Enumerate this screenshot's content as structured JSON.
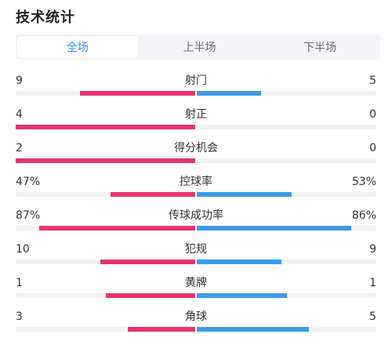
{
  "title": "技术统计",
  "tabs": [
    {
      "label": "全场",
      "active": true
    },
    {
      "label": "上半场",
      "active": false
    },
    {
      "label": "下半场",
      "active": false
    }
  ],
  "colors": {
    "home": "#e8336d",
    "away": "#3b9be8"
  },
  "stats": [
    {
      "name": "射门",
      "home": "9",
      "away": "5",
      "home_share": 0.64,
      "away_share": 0.36
    },
    {
      "name": "射正",
      "home": "4",
      "away": "0",
      "home_share": 1.0,
      "away_share": 0.0
    },
    {
      "name": "得分机会",
      "home": "2",
      "away": "0",
      "home_share": 1.0,
      "away_share": 0.0
    },
    {
      "name": "控球率",
      "home": "47%",
      "away": "53%",
      "home_share": 0.47,
      "away_share": 0.53
    },
    {
      "name": "传球成功率",
      "home": "87%",
      "away": "86%",
      "home_share": 0.87,
      "away_share": 0.86
    },
    {
      "name": "犯规",
      "home": "10",
      "away": "9",
      "home_share": 0.53,
      "away_share": 0.47
    },
    {
      "name": "黄牌",
      "home": "1",
      "away": "1",
      "home_share": 0.5,
      "away_share": 0.5
    },
    {
      "name": "角球",
      "home": "3",
      "away": "5",
      "home_share": 0.375,
      "away_share": 0.625
    }
  ]
}
